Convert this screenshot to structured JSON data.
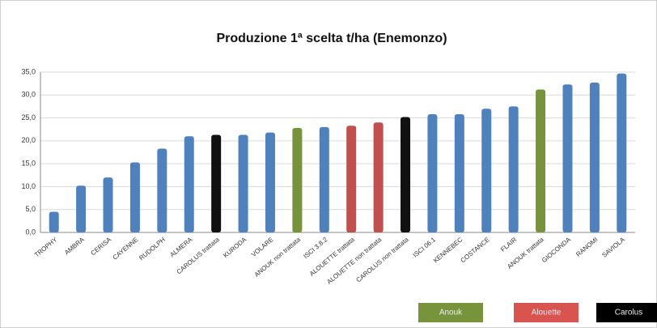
{
  "chart_data": {
    "type": "bar",
    "title": "Produzione 1ª scelta t/ha (Enemonzo)",
    "categories": [
      "TROPHY",
      "AMBRA",
      "CERISA",
      "CAYENNE",
      "RUDOLPH",
      "ALMERA",
      "CAROLUS trattata",
      "KURODA",
      "VOLARE",
      "ANOUK non trattata",
      "ISCI 3.8.2",
      "ALOUETTE trattata",
      "ALOUETTE non trattata",
      "CAROLUS non trattata",
      "ISCI 06.1",
      "KENNEBEC",
      "COSTANCE",
      "FLAIR",
      "ANOUK trattata",
      "GIOCONDA",
      "RANOMI",
      "SAVIOLA"
    ],
    "values": [
      4.5,
      10.2,
      12,
      15.3,
      18.3,
      21,
      21.3,
      21.3,
      21.8,
      22.8,
      23,
      23.3,
      24,
      25.2,
      25.8,
      25.8,
      27,
      27.5,
      31.2,
      32.3,
      32.7,
      34.7
    ],
    "colors": [
      "#4f81bd",
      "#4f81bd",
      "#4f81bd",
      "#4f81bd",
      "#4f81bd",
      "#4f81bd",
      "#111111",
      "#4f81bd",
      "#4f81bd",
      "#77933c",
      "#4f81bd",
      "#c0504d",
      "#c0504d",
      "#111111",
      "#4f81bd",
      "#4f81bd",
      "#4f81bd",
      "#4f81bd",
      "#77933c",
      "#4f81bd",
      "#4f81bd",
      "#4f81bd"
    ],
    "ylim": [
      0,
      35
    ],
    "yticks": [
      {
        "value": 0,
        "label": "0,0"
      },
      {
        "value": 5,
        "label": "5,0"
      },
      {
        "value": 10,
        "label": "10,0"
      },
      {
        "value": 15,
        "label": "15,0"
      },
      {
        "value": 20,
        "label": "20,0"
      },
      {
        "value": 25,
        "label": "25,0"
      },
      {
        "value": 30,
        "label": "30,0"
      },
      {
        "value": 35,
        "label": "35,0"
      }
    ],
    "grid": true,
    "legend": [
      {
        "name": "Anouk",
        "color": "#77933c"
      },
      {
        "name": "Alouette",
        "color": "#d9534f"
      },
      {
        "name": "Carolus",
        "color": "#000000"
      }
    ]
  }
}
